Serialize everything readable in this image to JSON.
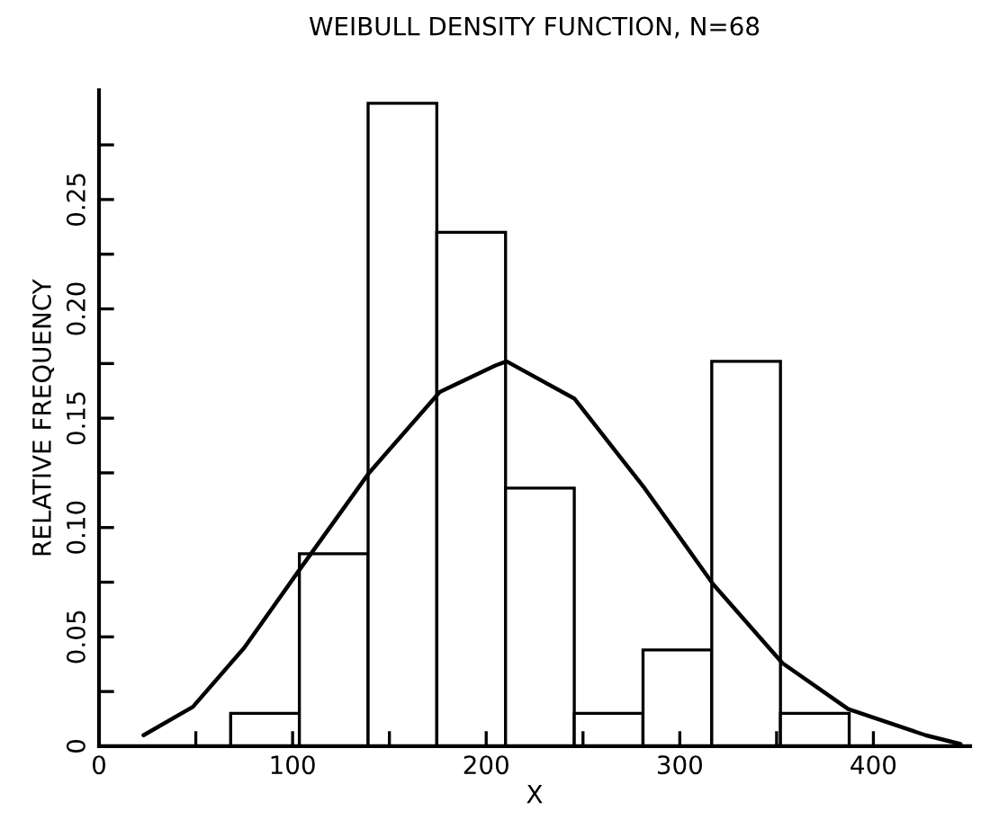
{
  "chart_data": {
    "type": "histogram",
    "title": "WEIBULL DENSITY FUNCTION, N=68",
    "xlabel": "X",
    "ylabel": "RELATIVE FREQUENCY",
    "bins": [
      68,
      103.5,
      139,
      174.5,
      210,
      245.5,
      281,
      316.5,
      352,
      387.5
    ],
    "values": [
      0.015,
      0.088,
      0.294,
      0.235,
      0.118,
      0.015,
      0.044,
      0.176,
      0.015
    ],
    "color": "#ffffff",
    "series": [
      {
        "type": "line",
        "color": "#000000",
        "x": [
          23,
          48.5,
          75,
          103,
          139.5,
          176,
          204.5,
          210.5,
          245.5,
          281.8,
          317.3,
          353,
          387,
          427,
          445
        ],
        "values": [
          0.005,
          0.018,
          0.045,
          0.08,
          0.125,
          0.162,
          0.174,
          0.176,
          0.159,
          0.118,
          0.074,
          0.038,
          0.017,
          0.005,
          0.001
        ]
      }
    ],
    "xlim": [
      0,
      450
    ],
    "ylim": [
      0,
      0.3
    ],
    "xticks": [
      0,
      {
        "value": 50,
        "label": null
      },
      100,
      {
        "value": 150,
        "label": null
      },
      200,
      {
        "value": 250,
        "label": null
      },
      300,
      {
        "value": 350,
        "label": null
      },
      400
    ],
    "yticks": [
      {
        "value": 0,
        "label": "0"
      },
      {
        "value": 0.025,
        "label": null
      },
      {
        "value": 0.05,
        "label": "0.05"
      },
      {
        "value": 0.075,
        "label": null
      },
      {
        "value": 0.1,
        "label": "0.10"
      },
      {
        "value": 0.125,
        "label": null
      },
      {
        "value": 0.15,
        "label": "0.15"
      },
      {
        "value": 0.175,
        "label": null
      },
      {
        "value": 0.2,
        "label": "0.20"
      },
      {
        "value": 0.225,
        "label": null
      },
      {
        "value": 0.25,
        "label": "0.25"
      },
      {
        "value": 0.275,
        "label": null
      }
    ],
    "grid": false
  }
}
